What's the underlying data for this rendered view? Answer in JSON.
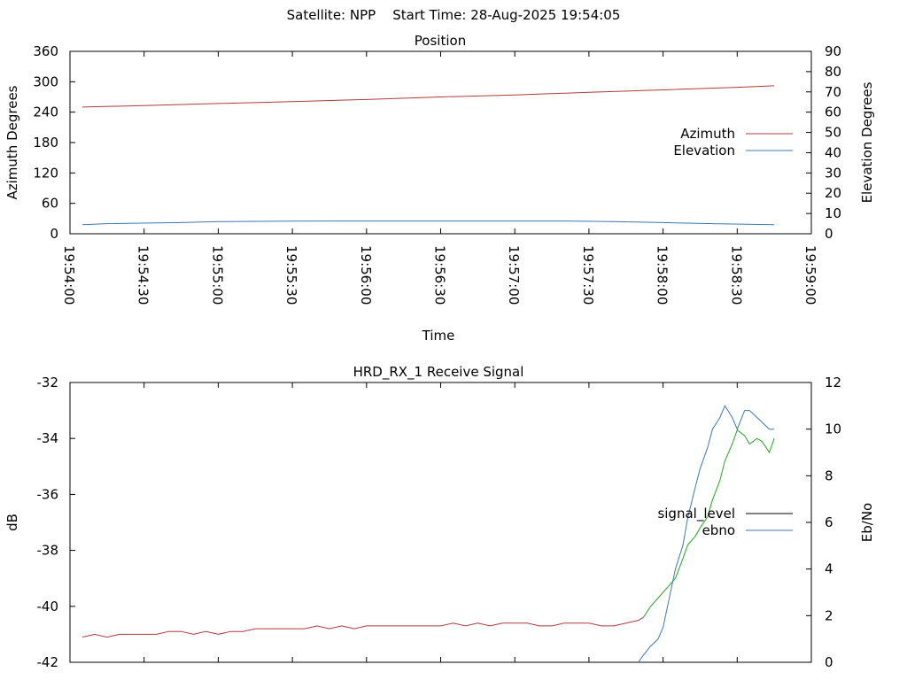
{
  "header": {
    "title": "Satellite: NPP    Start Time: 28-Aug-2025 19:54:05"
  },
  "chart_data": [
    {
      "type": "line",
      "title": "Position",
      "xlabel": "Time",
      "ylabel": "Azimuth Degrees",
      "y2label": "Elevation Degrees",
      "x_ticks": [
        "19:54:00",
        "19:54:30",
        "19:55:00",
        "19:55:30",
        "19:56:00",
        "19:56:30",
        "19:57:00",
        "19:57:30",
        "19:58:00",
        "19:58:30",
        "19:59:00"
      ],
      "xlim": [
        "19:54:00",
        "19:59:00"
      ],
      "ylim": [
        0,
        360
      ],
      "y2lim": [
        0,
        90
      ],
      "y_ticks": [
        0,
        60,
        120,
        180,
        240,
        300,
        360
      ],
      "y2_ticks": [
        0,
        10,
        20,
        30,
        40,
        50,
        60,
        70,
        80,
        90
      ],
      "grid": false,
      "legend": "right",
      "series": [
        {
          "name": "Azimuth",
          "axis": "y",
          "color": "#b03a3a",
          "x": [
            "19:54:05",
            "19:54:30",
            "19:55:00",
            "19:55:30",
            "19:56:00",
            "19:56:30",
            "19:57:00",
            "19:57:30",
            "19:58:00",
            "19:58:30",
            "19:58:45"
          ],
          "values": [
            250,
            253,
            257,
            261,
            265,
            270,
            274,
            279,
            284,
            289,
            292
          ]
        },
        {
          "name": "Elevation",
          "axis": "y2",
          "color": "#3a78b0",
          "x": [
            "19:54:05",
            "19:54:15",
            "19:54:45",
            "19:55:00",
            "19:55:30",
            "19:56:00",
            "19:56:30",
            "19:57:00",
            "19:57:20",
            "19:57:40",
            "19:58:00",
            "19:58:20",
            "19:58:45"
          ],
          "values": [
            4.5,
            5,
            5.5,
            6,
            6.2,
            6.3,
            6.3,
            6.3,
            6.3,
            6,
            5.5,
            5,
            4.5
          ]
        }
      ]
    },
    {
      "type": "line",
      "title": "HRD_RX_1 Receive Signal",
      "xlabel": "",
      "ylabel": "dB",
      "y2label": "Eb/No",
      "ylim": [
        -42,
        -32
      ],
      "y2lim": [
        0,
        12
      ],
      "y_ticks": [
        -42,
        -40,
        -38,
        -36,
        -34,
        -32
      ],
      "y2_ticks": [
        0,
        2,
        4,
        6,
        8,
        10,
        12
      ],
      "grid": false,
      "legend": "right",
      "series": [
        {
          "name": "signal_level",
          "axis": "y",
          "color": "#b03a3a",
          "color_high": "#1fa81f",
          "x": [
            "19:54:05",
            "19:54:10",
            "19:54:15",
            "19:54:20",
            "19:54:25",
            "19:54:30",
            "19:54:35",
            "19:54:40",
            "19:54:45",
            "19:54:50",
            "19:54:55",
            "19:55:00",
            "19:55:05",
            "19:55:10",
            "19:55:15",
            "19:55:20",
            "19:55:25",
            "19:55:30",
            "19:55:35",
            "19:55:40",
            "19:55:45",
            "19:55:50",
            "19:55:55",
            "19:56:00",
            "19:56:05",
            "19:56:10",
            "19:56:15",
            "19:56:20",
            "19:56:25",
            "19:56:30",
            "19:56:35",
            "19:56:40",
            "19:56:45",
            "19:56:50",
            "19:56:55",
            "19:57:00",
            "19:57:05",
            "19:57:10",
            "19:57:15",
            "19:57:20",
            "19:57:25",
            "19:57:30",
            "19:57:35",
            "19:57:40",
            "19:57:45",
            "19:57:50",
            "19:57:52",
            "19:57:55",
            "19:58:00",
            "19:58:02",
            "19:58:05",
            "19:58:08",
            "19:58:10",
            "19:58:13",
            "19:58:15",
            "19:58:18",
            "19:58:20",
            "19:58:23",
            "19:58:25",
            "19:58:28",
            "19:58:30",
            "19:58:33",
            "19:58:35",
            "19:58:38",
            "19:58:40",
            "19:58:43",
            "19:58:45"
          ],
          "values": [
            -41.1,
            -41.0,
            -41.1,
            -41.0,
            -41.0,
            -41.0,
            -41.0,
            -40.9,
            -40.9,
            -41.0,
            -40.9,
            -41.0,
            -40.9,
            -40.9,
            -40.8,
            -40.8,
            -40.8,
            -40.8,
            -40.8,
            -40.7,
            -40.8,
            -40.7,
            -40.8,
            -40.7,
            -40.7,
            -40.7,
            -40.7,
            -40.7,
            -40.7,
            -40.7,
            -40.6,
            -40.7,
            -40.6,
            -40.7,
            -40.6,
            -40.6,
            -40.6,
            -40.7,
            -40.7,
            -40.6,
            -40.6,
            -40.6,
            -40.7,
            -40.7,
            -40.6,
            -40.5,
            -40.4,
            -40.0,
            -39.5,
            -39.3,
            -39.0,
            -38.3,
            -37.8,
            -37.5,
            -37.2,
            -36.8,
            -36.2,
            -35.5,
            -34.8,
            -34.2,
            -33.7,
            -33.9,
            -34.2,
            -34.0,
            -34.1,
            -34.5,
            -34.0
          ]
        },
        {
          "name": "ebno",
          "axis": "y2",
          "color": "#3a78b0",
          "x": [
            "19:57:50",
            "19:57:52",
            "19:57:55",
            "19:57:58",
            "19:58:00",
            "19:58:02",
            "19:58:05",
            "19:58:08",
            "19:58:10",
            "19:58:13",
            "19:58:15",
            "19:58:18",
            "19:58:20",
            "19:58:23",
            "19:58:25",
            "19:58:28",
            "19:58:30",
            "19:58:33",
            "19:58:35",
            "19:58:38",
            "19:58:40",
            "19:58:43",
            "19:58:45"
          ],
          "values": [
            0.0,
            0.3,
            0.7,
            1.0,
            1.5,
            2.5,
            4.0,
            5.0,
            6.2,
            7.5,
            8.3,
            9.2,
            10.0,
            10.5,
            11.0,
            10.5,
            10.0,
            10.8,
            10.8,
            10.5,
            10.3,
            10.0,
            10.0
          ]
        }
      ]
    }
  ]
}
